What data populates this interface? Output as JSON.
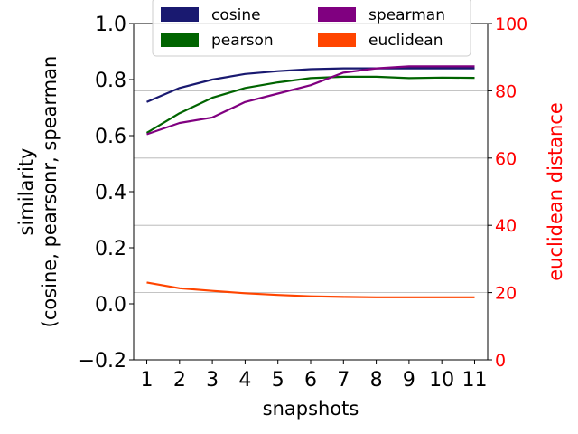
{
  "chart_data": {
    "type": "line",
    "xlabel": "snapshots",
    "ylabel_lines": [
      "similarity",
      "(cosine, pearsonr, spearman"
    ],
    "y2label": "euclidean distance",
    "x": [
      1,
      2,
      3,
      4,
      5,
      6,
      7,
      8,
      9,
      10,
      11
    ],
    "x_tick_labels": [
      "1",
      "2",
      "3",
      "4",
      "5",
      "6",
      "7",
      "8",
      "9",
      "10",
      "11"
    ],
    "xlim": [
      0.6,
      11.4
    ],
    "ylim": [
      -0.2,
      1.0
    ],
    "y_ticks": [
      -0.2,
      0.0,
      0.2,
      0.4,
      0.6,
      0.8,
      1.0
    ],
    "y_tick_labels": [
      "−0.2",
      "0.0",
      "0.2",
      "0.4",
      "0.6",
      "0.8",
      "1.0"
    ],
    "y2lim": [
      0,
      100
    ],
    "y2_ticks": [
      0,
      20,
      40,
      60,
      80,
      100
    ],
    "y2_tick_labels": [
      "0",
      "20",
      "40",
      "60",
      "80",
      "100"
    ],
    "y2_grid": [
      20,
      40,
      60,
      80
    ],
    "legend_location": "top-center",
    "left_series": [
      {
        "name": "cosine",
        "color": "#191970",
        "values": [
          0.72,
          0.77,
          0.8,
          0.82,
          0.83,
          0.837,
          0.84,
          0.84,
          0.84,
          0.84,
          0.84
        ]
      },
      {
        "name": "pearson",
        "color": "#006400",
        "values": [
          0.61,
          0.68,
          0.735,
          0.77,
          0.79,
          0.805,
          0.81,
          0.81,
          0.805,
          0.807,
          0.806
        ]
      },
      {
        "name": "spearman",
        "color": "#800080",
        "values": [
          0.605,
          0.645,
          0.665,
          0.72,
          0.75,
          0.78,
          0.825,
          0.84,
          0.847,
          0.847,
          0.847
        ]
      }
    ],
    "right_series": [
      {
        "name": "euclidean",
        "color": "#ff4500",
        "values": [
          23.0,
          21.3,
          20.5,
          19.8,
          19.3,
          18.9,
          18.7,
          18.6,
          18.6,
          18.6,
          18.6
        ]
      }
    ],
    "legend": [
      {
        "label": "cosine",
        "color": "#191970"
      },
      {
        "label": "spearman",
        "color": "#800080"
      },
      {
        "label": "pearson",
        "color": "#006400"
      },
      {
        "label": "euclidean",
        "color": "#ff4500"
      }
    ]
  }
}
